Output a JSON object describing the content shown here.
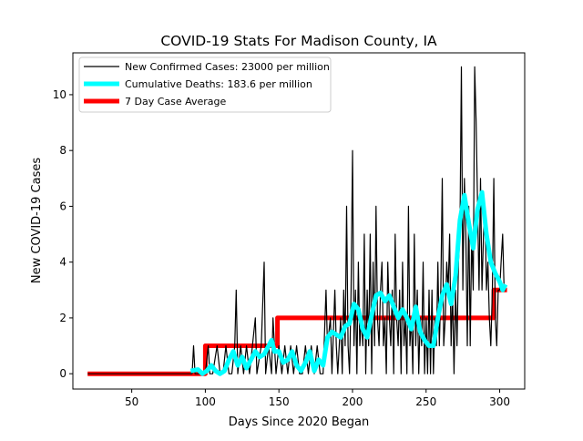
{
  "chart_data": {
    "type": "line",
    "title": "COVID-19 Stats For Madison County, IA",
    "xlabel": "Days Since 2020 Began",
    "ylabel": "New COVID-19 Cases",
    "xlim": [
      10,
      317
    ],
    "ylim": [
      -0.55,
      11.5
    ],
    "xticks": [
      50,
      100,
      150,
      200,
      250,
      300
    ],
    "yticks": [
      0,
      2,
      4,
      6,
      8,
      10
    ],
    "grid": false,
    "legend_position": "top-left",
    "series": [
      {
        "name": "New Confirmed Cases: 23000 per million",
        "color": "#000000",
        "points": [
          [
            20,
            0
          ],
          [
            30,
            0
          ],
          [
            40,
            0
          ],
          [
            50,
            0
          ],
          [
            60,
            0
          ],
          [
            70,
            0
          ],
          [
            80,
            0
          ],
          [
            90,
            0
          ],
          [
            91,
            0
          ],
          [
            92,
            1
          ],
          [
            93,
            0
          ],
          [
            95,
            0
          ],
          [
            97,
            0
          ],
          [
            100,
            0
          ],
          [
            102,
            1
          ],
          [
            103,
            0
          ],
          [
            105,
            0
          ],
          [
            108,
            1
          ],
          [
            110,
            0
          ],
          [
            112,
            0
          ],
          [
            114,
            1
          ],
          [
            116,
            0
          ],
          [
            118,
            0
          ],
          [
            120,
            1
          ],
          [
            121,
            3
          ],
          [
            122,
            0
          ],
          [
            124,
            1
          ],
          [
            126,
            0
          ],
          [
            128,
            1
          ],
          [
            130,
            0
          ],
          [
            132,
            1
          ],
          [
            134,
            2
          ],
          [
            135,
            0
          ],
          [
            138,
            1
          ],
          [
            140,
            4
          ],
          [
            141,
            0
          ],
          [
            143,
            1
          ],
          [
            145,
            0
          ],
          [
            146,
            2
          ],
          [
            147,
            1
          ],
          [
            148,
            0
          ],
          [
            150,
            1
          ],
          [
            152,
            0
          ],
          [
            154,
            1
          ],
          [
            156,
            0
          ],
          [
            158,
            1
          ],
          [
            160,
            0
          ],
          [
            162,
            1
          ],
          [
            164,
            0
          ],
          [
            166,
            0
          ],
          [
            168,
            1
          ],
          [
            170,
            0
          ],
          [
            172,
            1
          ],
          [
            174,
            0
          ],
          [
            176,
            1
          ],
          [
            178,
            0
          ],
          [
            180,
            0
          ],
          [
            182,
            3
          ],
          [
            183,
            1
          ],
          [
            185,
            2
          ],
          [
            186,
            0
          ],
          [
            188,
            3
          ],
          [
            189,
            1
          ],
          [
            190,
            0
          ],
          [
            192,
            2
          ],
          [
            193,
            0
          ],
          [
            194,
            3
          ],
          [
            195,
            1
          ],
          [
            196,
            6
          ],
          [
            197,
            1
          ],
          [
            198,
            0
          ],
          [
            199,
            3
          ],
          [
            200,
            8
          ],
          [
            201,
            1
          ],
          [
            202,
            3
          ],
          [
            203,
            0
          ],
          [
            204,
            4
          ],
          [
            205,
            1
          ],
          [
            206,
            2
          ],
          [
            207,
            1
          ],
          [
            208,
            5
          ],
          [
            209,
            0
          ],
          [
            210,
            3
          ],
          [
            211,
            1
          ],
          [
            212,
            5
          ],
          [
            213,
            0
          ],
          [
            214,
            4
          ],
          [
            215,
            1
          ],
          [
            216,
            6
          ],
          [
            217,
            2
          ],
          [
            218,
            1
          ],
          [
            219,
            3
          ],
          [
            220,
            4
          ],
          [
            221,
            1
          ],
          [
            222,
            2
          ],
          [
            223,
            0
          ],
          [
            224,
            4
          ],
          [
            225,
            2
          ],
          [
            226,
            1
          ],
          [
            227,
            3
          ],
          [
            228,
            0
          ],
          [
            229,
            5
          ],
          [
            230,
            2
          ],
          [
            231,
            1
          ],
          [
            232,
            3
          ],
          [
            233,
            0
          ],
          [
            234,
            4
          ],
          [
            235,
            1
          ],
          [
            236,
            2
          ],
          [
            237,
            0
          ],
          [
            238,
            6
          ],
          [
            239,
            1
          ],
          [
            240,
            2
          ],
          [
            241,
            0
          ],
          [
            242,
            5
          ],
          [
            243,
            1
          ],
          [
            244,
            3
          ],
          [
            245,
            0
          ],
          [
            246,
            2
          ],
          [
            247,
            1
          ],
          [
            248,
            4
          ],
          [
            249,
            0
          ],
          [
            250,
            2
          ],
          [
            251,
            0
          ],
          [
            252,
            3
          ],
          [
            253,
            0
          ],
          [
            254,
            3
          ],
          [
            255,
            0
          ],
          [
            256,
            2
          ],
          [
            257,
            1
          ],
          [
            258,
            4
          ],
          [
            259,
            1
          ],
          [
            260,
            3
          ],
          [
            261,
            7
          ],
          [
            262,
            1
          ],
          [
            263,
            2
          ],
          [
            264,
            4
          ],
          [
            265,
            3
          ],
          [
            266,
            5
          ],
          [
            267,
            1
          ],
          [
            268,
            3
          ],
          [
            269,
            0
          ],
          [
            270,
            3
          ],
          [
            271,
            1
          ],
          [
            272,
            4
          ],
          [
            273,
            5
          ],
          [
            274,
            11
          ],
          [
            275,
            3
          ],
          [
            276,
            7
          ],
          [
            277,
            5
          ],
          [
            278,
            1
          ],
          [
            279,
            6
          ],
          [
            280,
            1
          ],
          [
            281,
            5
          ],
          [
            282,
            3
          ],
          [
            283,
            11
          ],
          [
            284,
            9
          ],
          [
            285,
            6
          ],
          [
            286,
            3
          ],
          [
            287,
            7
          ],
          [
            288,
            3
          ],
          [
            289,
            5
          ],
          [
            290,
            6
          ],
          [
            291,
            3
          ],
          [
            292,
            4
          ],
          [
            293,
            2
          ],
          [
            294,
            1
          ],
          [
            295,
            3
          ],
          [
            296,
            7
          ],
          [
            297,
            2
          ],
          [
            298,
            1
          ],
          [
            299,
            3
          ],
          [
            300,
            3
          ],
          [
            301,
            4
          ],
          [
            302,
            5
          ],
          [
            303,
            3
          ],
          [
            304,
            3
          ]
        ]
      },
      {
        "name": "Cumulative Deaths: 183.6 per million",
        "color": "#00ffff",
        "points": [
          [
            90,
            0.1
          ],
          [
            95,
            0.15
          ],
          [
            98,
            0
          ],
          [
            101,
            0.1
          ],
          [
            104,
            0.3
          ],
          [
            107,
            0.1
          ],
          [
            110,
            0
          ],
          [
            113,
            0.1
          ],
          [
            116,
            0.5
          ],
          [
            119,
            0.8
          ],
          [
            122,
            0.3
          ],
          [
            125,
            0.6
          ],
          [
            128,
            0.2
          ],
          [
            131,
            0.5
          ],
          [
            134,
            0.8
          ],
          [
            137,
            0.6
          ],
          [
            140,
            0.7
          ],
          [
            143,
            1.0
          ],
          [
            145,
            1.2
          ],
          [
            147,
            0.8
          ],
          [
            150,
            0.8
          ],
          [
            153,
            0.4
          ],
          [
            156,
            0.5
          ],
          [
            159,
            0.8
          ],
          [
            162,
            0.3
          ],
          [
            165,
            0.1
          ],
          [
            168,
            0.4
          ],
          [
            171,
            0.8
          ],
          [
            174,
            0.1
          ],
          [
            177,
            0.5
          ],
          [
            180,
            0.3
          ],
          [
            183,
            1.3
          ],
          [
            186,
            1.5
          ],
          [
            189,
            1.4
          ],
          [
            192,
            1.3
          ],
          [
            195,
            1.7
          ],
          [
            198,
            1.8
          ],
          [
            201,
            2.5
          ],
          [
            204,
            2.3
          ],
          [
            207,
            1.6
          ],
          [
            210,
            1.3
          ],
          [
            213,
            2.1
          ],
          [
            216,
            2.8
          ],
          [
            219,
            2.9
          ],
          [
            222,
            2.6
          ],
          [
            225,
            2.8
          ],
          [
            228,
            2.4
          ],
          [
            231,
            2.0
          ],
          [
            234,
            2.3
          ],
          [
            237,
            2.0
          ],
          [
            240,
            1.6
          ],
          [
            243,
            2.4
          ],
          [
            246,
            1.5
          ],
          [
            249,
            1.2
          ],
          [
            252,
            1.0
          ],
          [
            255,
            1.0
          ],
          [
            258,
            2.0
          ],
          [
            261,
            2.8
          ],
          [
            264,
            3.2
          ],
          [
            267,
            2.5
          ],
          [
            270,
            3.5
          ],
          [
            273,
            5.5
          ],
          [
            276,
            6.4
          ],
          [
            279,
            5.4
          ],
          [
            282,
            4.5
          ],
          [
            285,
            5.9
          ],
          [
            288,
            6.5
          ],
          [
            291,
            5.0
          ],
          [
            294,
            4.0
          ],
          [
            297,
            3.6
          ],
          [
            300,
            3.3
          ],
          [
            302,
            3.0
          ],
          [
            304,
            3.2
          ]
        ]
      },
      {
        "name": "7 Day Case Average",
        "color": "#ff0000",
        "points": [
          [
            20,
            0
          ],
          [
            100,
            0
          ],
          [
            100,
            1
          ],
          [
            149,
            1
          ],
          [
            149,
            2
          ],
          [
            296,
            2
          ],
          [
            296,
            3
          ],
          [
            305,
            3
          ]
        ]
      }
    ]
  }
}
